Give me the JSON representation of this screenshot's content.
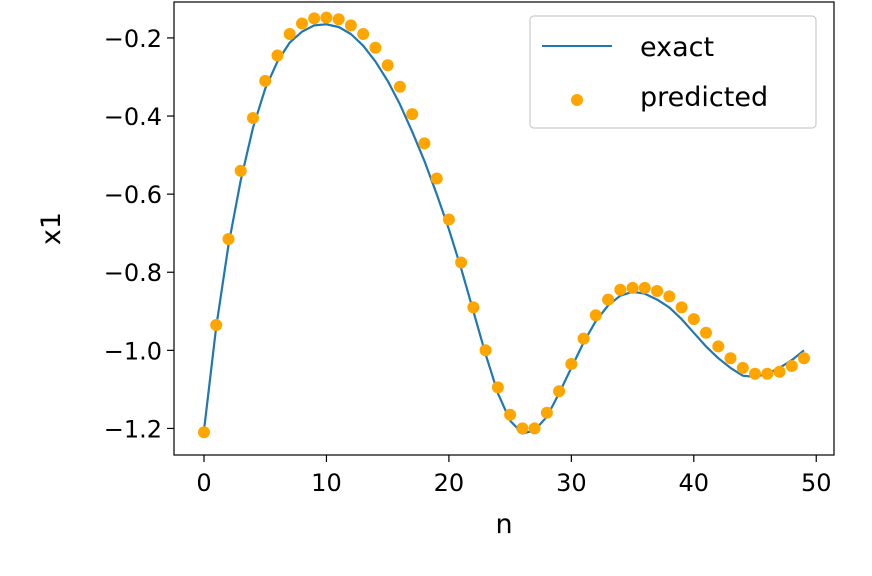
{
  "chart_data": {
    "type": "line+scatter",
    "title": "",
    "xlabel": "n",
    "ylabel": "x1",
    "xlim": [
      -2.45,
      51.45
    ],
    "ylim": [
      -1.268,
      -0.108
    ],
    "xticks": [
      0,
      10,
      20,
      30,
      40,
      50
    ],
    "xtick_labels": [
      "0",
      "10",
      "20",
      "30",
      "40",
      "50"
    ],
    "yticks": [
      -1.2,
      -1.0,
      -0.8,
      -0.6,
      -0.4,
      -0.2
    ],
    "ytick_labels": [
      "−1.2",
      "−1.0",
      "−0.8",
      "−0.6",
      "−0.4",
      "−0.2"
    ],
    "grid": false,
    "legend_position": "top-right",
    "series": [
      {
        "name": "exact",
        "kind": "line",
        "color": "#1f77b4",
        "x": [
          0,
          1,
          2,
          3,
          4,
          5,
          6,
          7,
          8,
          9,
          10,
          11,
          12,
          13,
          14,
          15,
          16,
          17,
          18,
          19,
          20,
          21,
          22,
          23,
          24,
          25,
          26,
          27,
          28,
          29,
          30,
          31,
          32,
          33,
          34,
          35,
          36,
          37,
          38,
          39,
          40,
          41,
          42,
          43,
          44,
          45,
          46,
          47,
          48,
          49
        ],
        "y": [
          -1.205,
          -0.94,
          -0.73,
          -0.565,
          -0.43,
          -0.33,
          -0.26,
          -0.212,
          -0.184,
          -0.168,
          -0.165,
          -0.172,
          -0.19,
          -0.22,
          -0.26,
          -0.31,
          -0.37,
          -0.44,
          -0.515,
          -0.6,
          -0.69,
          -0.79,
          -0.9,
          -1.01,
          -1.11,
          -1.18,
          -1.213,
          -1.205,
          -1.17,
          -1.11,
          -1.045,
          -0.98,
          -0.925,
          -0.885,
          -0.86,
          -0.85,
          -0.855,
          -0.87,
          -0.89,
          -0.92,
          -0.955,
          -0.99,
          -1.02,
          -1.045,
          -1.065,
          -1.068,
          -1.06,
          -1.045,
          -1.025,
          -1.0
        ]
      },
      {
        "name": "predicted",
        "kind": "scatter",
        "color": "#ffa500",
        "x": [
          0,
          1,
          2,
          3,
          4,
          5,
          6,
          7,
          8,
          9,
          10,
          11,
          12,
          13,
          14,
          15,
          16,
          17,
          18,
          19,
          20,
          21,
          22,
          23,
          24,
          25,
          26,
          27,
          28,
          29,
          30,
          31,
          32,
          33,
          34,
          35,
          36,
          37,
          38,
          39,
          40,
          41,
          42,
          43,
          44,
          45,
          46,
          47,
          48,
          49
        ],
        "y": [
          -1.21,
          -0.935,
          -0.715,
          -0.54,
          -0.405,
          -0.31,
          -0.245,
          -0.19,
          -0.163,
          -0.15,
          -0.148,
          -0.152,
          -0.168,
          -0.19,
          -0.225,
          -0.27,
          -0.325,
          -0.395,
          -0.47,
          -0.56,
          -0.665,
          -0.775,
          -0.89,
          -1.0,
          -1.095,
          -1.165,
          -1.2,
          -1.2,
          -1.16,
          -1.105,
          -1.035,
          -0.97,
          -0.91,
          -0.87,
          -0.845,
          -0.84,
          -0.84,
          -0.848,
          -0.862,
          -0.89,
          -0.92,
          -0.955,
          -0.99,
          -1.02,
          -1.045,
          -1.06,
          -1.06,
          -1.055,
          -1.04,
          -1.02
        ]
      }
    ]
  }
}
